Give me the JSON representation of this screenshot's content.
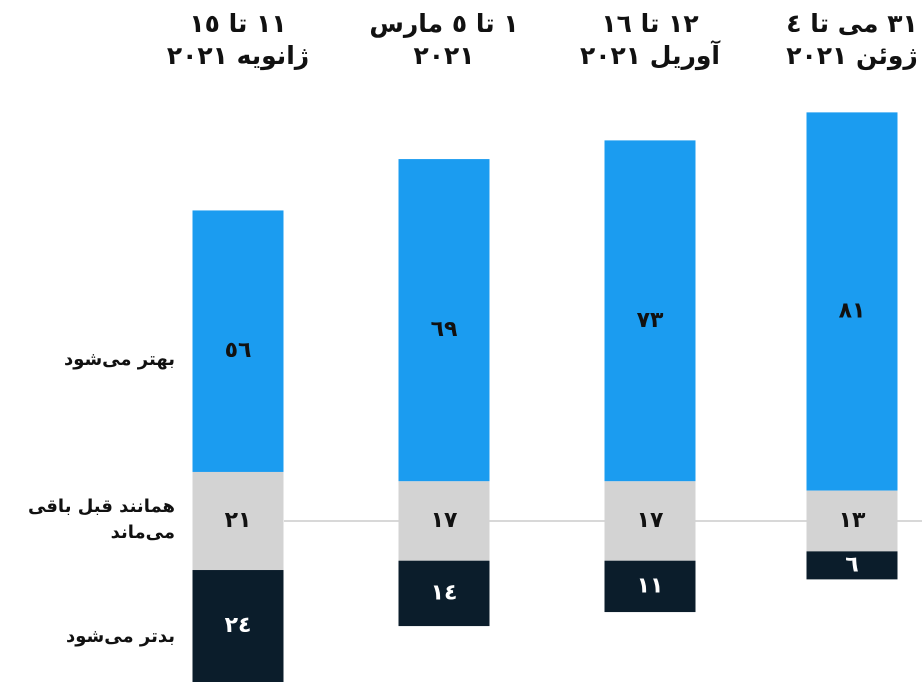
{
  "chart_data": {
    "type": "bar",
    "stacked": "diverging",
    "categories": [
      "١١ تا ١٥\nژانویه ٢٠٢١",
      "١ تا ٥ مارس\n٢٠٢١",
      "١٢ تا ١٦\nآوریل ٢٠٢١",
      "٣١ می تا ٤\nژوئن ٢٠٢١"
    ],
    "series": [
      {
        "name": "بهتر می‌شود",
        "color": "#1b9cf0",
        "values": [
          56,
          69,
          73,
          81
        ],
        "value_labels": [
          "٥٦",
          "٦٩",
          "٧٣",
          "٨١"
        ]
      },
      {
        "name": "همانند قبل باقی\nمی‌ماند",
        "color": "#d3d3d3",
        "values": [
          21,
          17,
          17,
          13
        ],
        "value_labels": [
          "٢١",
          "١٧",
          "١٧",
          "١٣"
        ]
      },
      {
        "name": "بدتر می‌شود",
        "color": "#0b1d2b",
        "values": [
          24,
          14,
          11,
          6
        ],
        "value_labels": [
          "٢٤",
          "١٤",
          "١١",
          "٦"
        ]
      }
    ]
  }
}
